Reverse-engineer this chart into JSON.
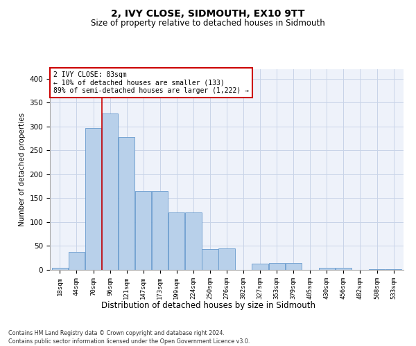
{
  "title": "2, IVY CLOSE, SIDMOUTH, EX10 9TT",
  "subtitle": "Size of property relative to detached houses in Sidmouth",
  "xlabel": "Distribution of detached houses by size in Sidmouth",
  "ylabel": "Number of detached properties",
  "categories": [
    "18sqm",
    "44sqm",
    "70sqm",
    "96sqm",
    "121sqm",
    "147sqm",
    "173sqm",
    "199sqm",
    "224sqm",
    "250sqm",
    "276sqm",
    "302sqm",
    "327sqm",
    "353sqm",
    "379sqm",
    "405sqm",
    "430sqm",
    "456sqm",
    "482sqm",
    "508sqm",
    "533sqm"
  ],
  "values": [
    5,
    38,
    297,
    328,
    278,
    165,
    165,
    120,
    120,
    44,
    45,
    0,
    13,
    14,
    14,
    0,
    4,
    5,
    0,
    1,
    1
  ],
  "bar_color": "#b8d0ea",
  "bar_edge_color": "#6699cc",
  "grid_color": "#c8d4e8",
  "background_color": "#eef2fa",
  "annotation_line1": "2 IVY CLOSE: 83sqm",
  "annotation_line2": "← 10% of detached houses are smaller (133)",
  "annotation_line3": "89% of semi-detached houses are larger (1,222) →",
  "vline_position": 2.5,
  "vline_color": "#cc0000",
  "ylim": [
    0,
    420
  ],
  "yticks": [
    0,
    50,
    100,
    150,
    200,
    250,
    300,
    350,
    400
  ],
  "footer_line1": "Contains HM Land Registry data © Crown copyright and database right 2024.",
  "footer_line2": "Contains public sector information licensed under the Open Government Licence v3.0."
}
